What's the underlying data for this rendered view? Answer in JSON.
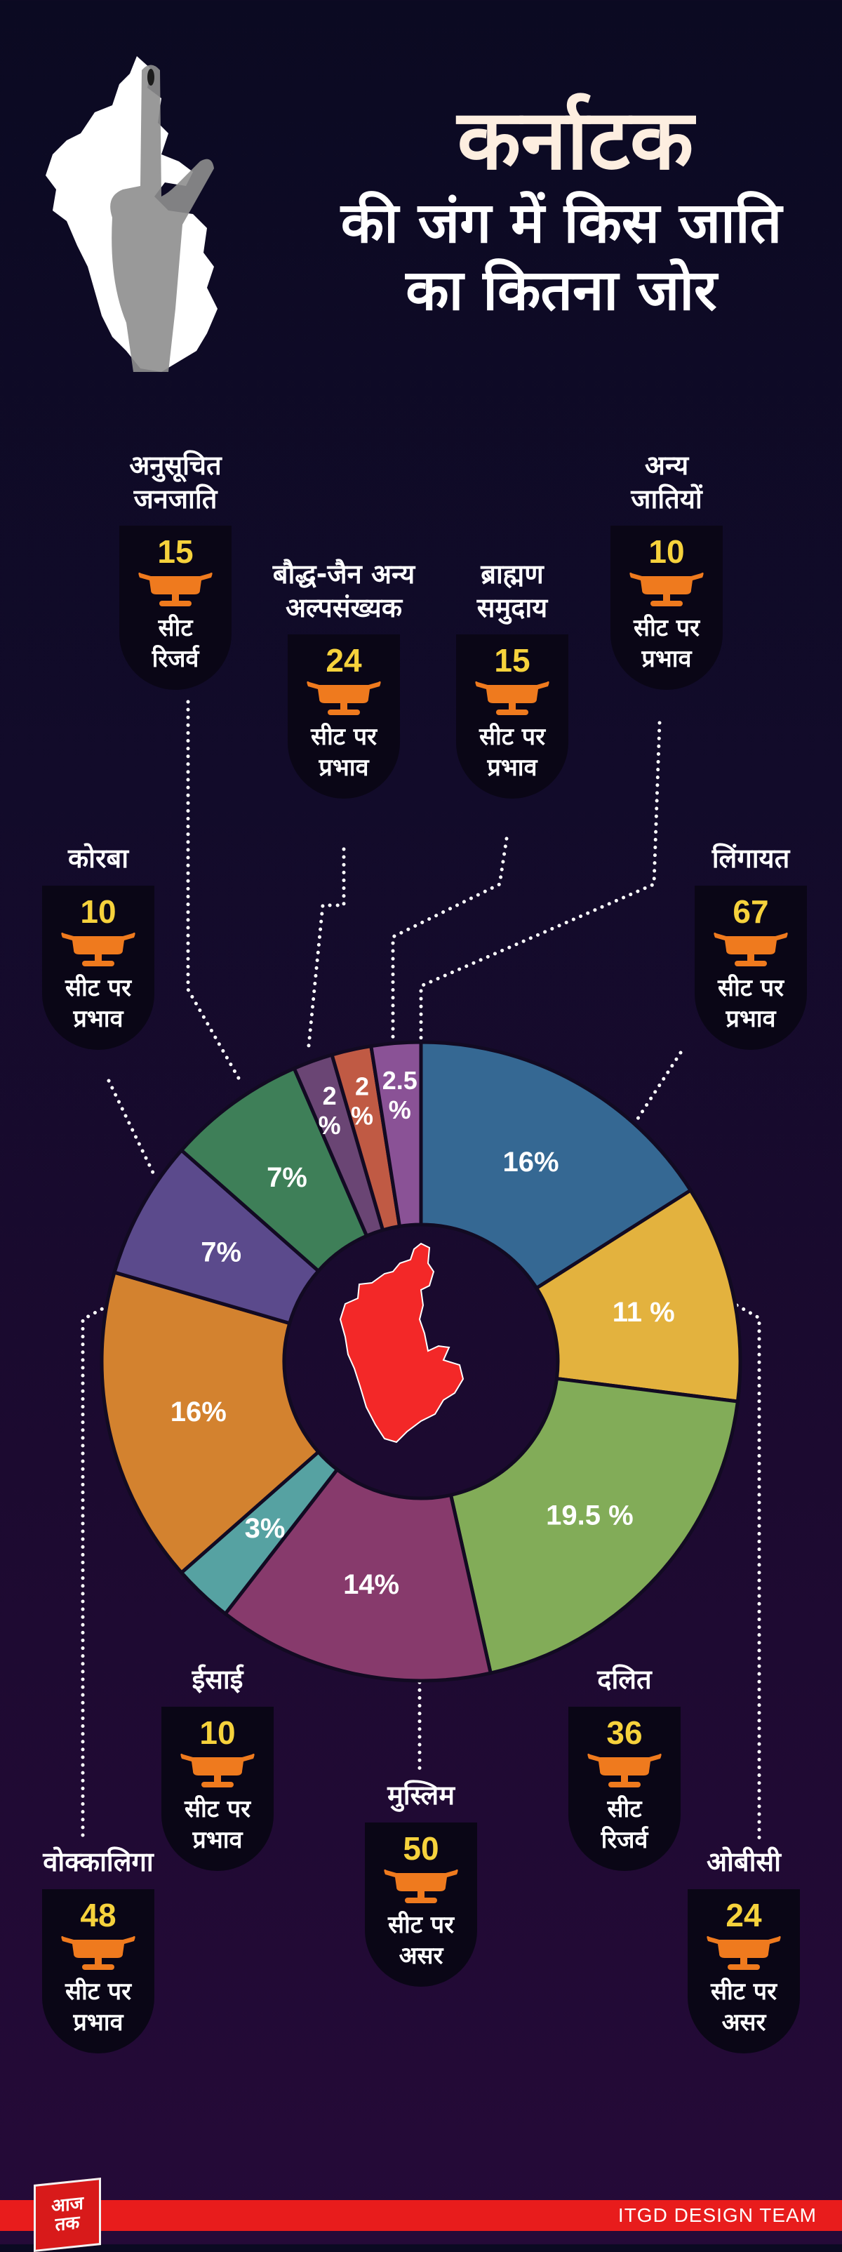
{
  "header": {
    "title": "कर्नाटक",
    "subtitle_line1": "की जंग में किस जाति",
    "subtitle_line2": "का कितना जोर"
  },
  "colors": {
    "background_top": "#0b0a22",
    "background_bottom": "#250a38",
    "card_bg": "#0a0616",
    "number_yellow": "#f6d23c",
    "icon_orange": "#ef7a1e",
    "map_red": "#f32828",
    "footer_red": "#e81c1c"
  },
  "callouts": [
    {
      "id": "st",
      "name": "अनुसूचित जनजाति",
      "seats": "15",
      "line1": "सीट",
      "line2": "रिजर्व"
    },
    {
      "id": "buddhist_jain",
      "name": "बौद्ध-जैन अन्य अल्पसंख्यक",
      "seats": "24",
      "line1": "सीट पर",
      "line2": "प्रभाव"
    },
    {
      "id": "brahmin",
      "name": "ब्राह्मण समुदाय",
      "seats": "15",
      "line1": "सीट पर",
      "line2": "प्रभाव"
    },
    {
      "id": "others",
      "name": "अन्य जातियों",
      "seats": "10",
      "line1": "सीट पर",
      "line2": "प्रभाव"
    },
    {
      "id": "korba",
      "name": "कोरबा",
      "seats": "10",
      "line1": "सीट पर",
      "line2": "प्रभाव"
    },
    {
      "id": "lingayat",
      "name": "लिंगायत",
      "seats": "67",
      "line1": "सीट पर",
      "line2": "प्रभाव"
    },
    {
      "id": "christian",
      "name": "ईसाई",
      "seats": "10",
      "line1": "सीट पर",
      "line2": "प्रभाव"
    },
    {
      "id": "dalit",
      "name": "दलित",
      "seats": "36",
      "line1": "सीट",
      "line2": "रिजर्व"
    },
    {
      "id": "muslim",
      "name": "मुस्लिम",
      "seats": "50",
      "line1": "सीट पर",
      "line2": "असर"
    },
    {
      "id": "vokkaliga",
      "name": "वोक्कालिगा",
      "seats": "48",
      "line1": "सीट पर",
      "line2": "प्रभाव"
    },
    {
      "id": "obc",
      "name": "ओबीसी",
      "seats": "24",
      "line1": "सीट पर",
      "line2": "असर"
    }
  ],
  "chart_data": {
    "type": "pie",
    "subtype": "donut",
    "title": "कर्नाटक की जंग में किस जाति का कितना जोर",
    "start_angle_deg": 0,
    "direction": "clockwise",
    "center_graphic": "karnataka-map",
    "slices": [
      {
        "label": "लिंगायत",
        "value": 16,
        "display": "16%",
        "color": "#356893"
      },
      {
        "label": "ओबीसी",
        "value": 11,
        "display": "11 %",
        "color": "#e3b23e"
      },
      {
        "label": "दलित",
        "value": 19.5,
        "display": "19.5 %",
        "color": "#82ac58"
      },
      {
        "label": "मुस्लिम",
        "value": 14,
        "display": "14%",
        "color": "#873a6c"
      },
      {
        "label": "ईसाई",
        "value": 3,
        "display": "3%",
        "color": "#56a2a2"
      },
      {
        "label": "वोक्कालिगा",
        "value": 16,
        "display": "16%",
        "color": "#d3822f"
      },
      {
        "label": "कोरबा",
        "value": 7,
        "display": "7%",
        "color": "#5b4a8c"
      },
      {
        "label": "अनुसूचित जनजाति",
        "value": 7,
        "display": "7%",
        "color": "#3e7f58"
      },
      {
        "label": "बौद्ध-जैन अन्य अल्पसंख्यक",
        "value": 2,
        "display": "2 %",
        "color": "#6a4574"
      },
      {
        "label": "ब्राह्मण समुदाय",
        "value": 2,
        "display": "2 %",
        "color": "#c05a44"
      },
      {
        "label": "अन्य जातियों",
        "value": 2.5,
        "display": "2.5 %",
        "color": "#8a5296"
      }
    ],
    "seats": [
      {
        "label": "लिंगायत",
        "seats": 67,
        "type": "सीट पर प्रभाव"
      },
      {
        "label": "ओबीसी",
        "seats": 24,
        "type": "सीट पर असर"
      },
      {
        "label": "दलित",
        "seats": 36,
        "type": "सीट रिजर्व"
      },
      {
        "label": "मुस्लिम",
        "seats": 50,
        "type": "सीट पर असर"
      },
      {
        "label": "ईसाई",
        "seats": 10,
        "type": "सीट पर प्रभाव"
      },
      {
        "label": "वोक्कालिगा",
        "seats": 48,
        "type": "सीट पर प्रभाव"
      },
      {
        "label": "कोरबा",
        "seats": 10,
        "type": "सीट पर प्रभाव"
      },
      {
        "label": "अनुसूचित जनजाति",
        "seats": 15,
        "type": "सीट रिजर्व"
      },
      {
        "label": "बौद्ध-जैन अन्य अल्पसंख्यक",
        "seats": 24,
        "type": "सीट पर प्रभाव"
      },
      {
        "label": "ब्राह्मण समुदाय",
        "seats": 15,
        "type": "सीट पर प्रभाव"
      },
      {
        "label": "अन्य जातियों",
        "seats": 10,
        "type": "सीट पर प्रभाव"
      }
    ]
  },
  "footer": {
    "logo_line1": "आज",
    "logo_line2": "तक",
    "credit": "ITGD DESIGN TEAM"
  }
}
